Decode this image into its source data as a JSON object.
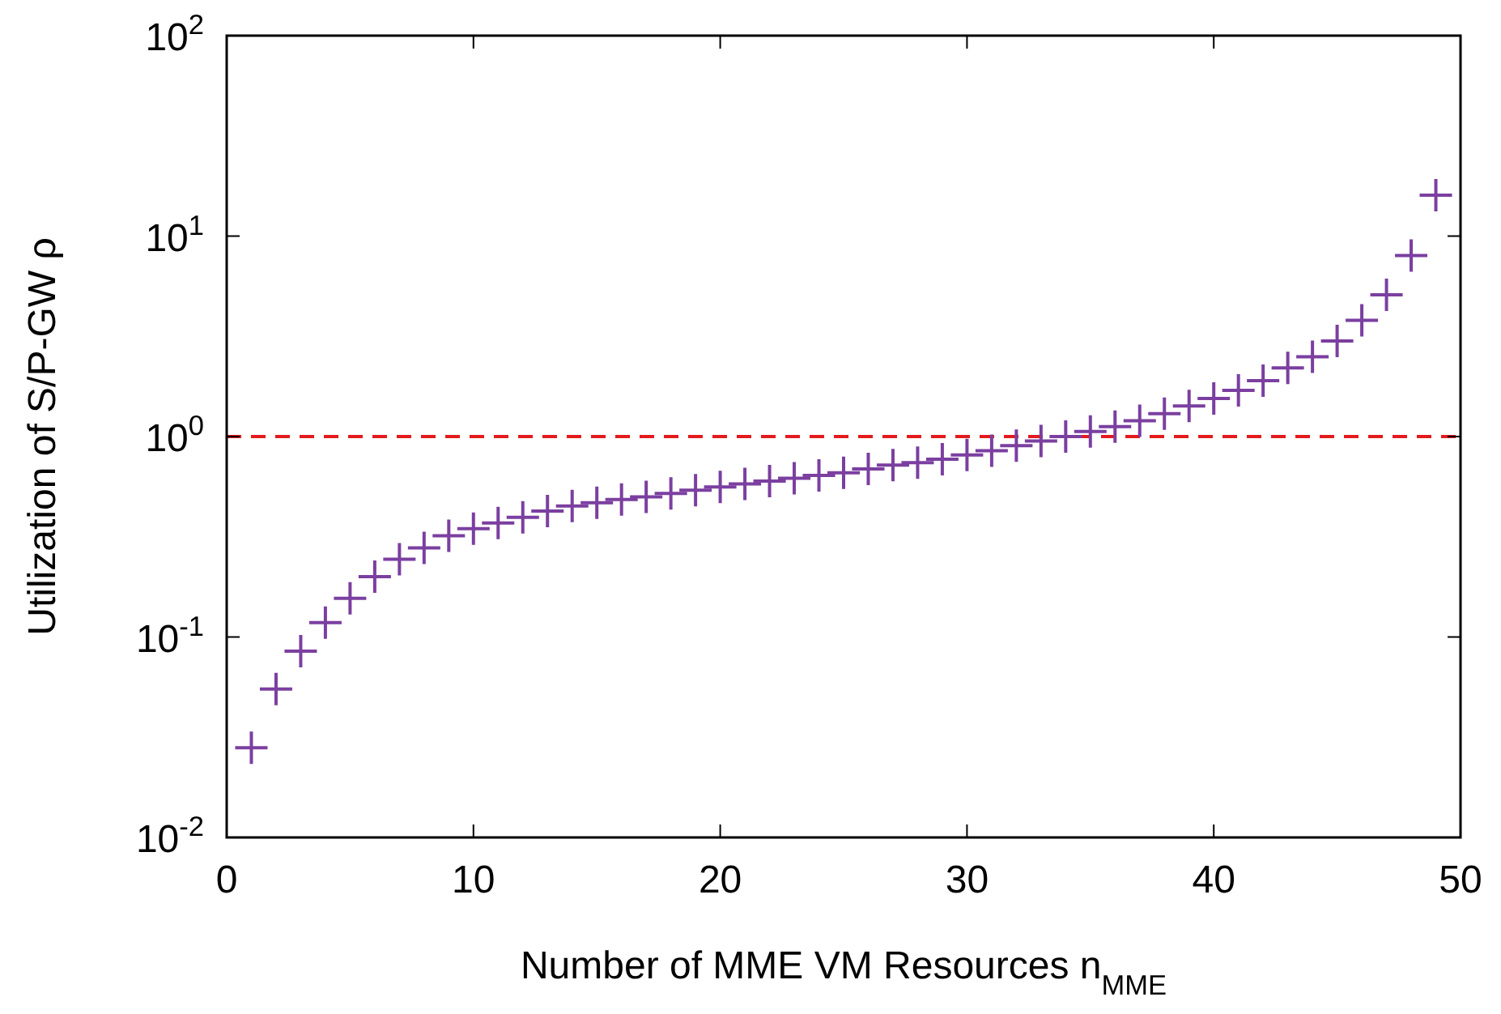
{
  "chart_data": {
    "type": "scatter",
    "xlabel": "Number of MME VM Resources n$_{MME}$",
    "ylabel": "Utilization of S/P-GW ρ",
    "log": "y",
    "marker": "cross",
    "grid": false,
    "x": [
      1,
      2,
      3,
      4,
      5,
      6,
      7,
      8,
      9,
      10,
      11,
      12,
      13,
      14,
      15,
      16,
      17,
      18,
      19,
      20,
      21,
      22,
      23,
      24,
      25,
      26,
      27,
      28,
      29,
      30,
      31,
      32,
      33,
      34,
      35,
      36,
      37,
      38,
      39,
      40,
      41,
      42,
      43,
      44,
      45,
      46,
      47,
      48,
      49
    ],
    "series": [
      {
        "color": "#7b3fa0",
        "values": [
          0.028,
          0.055,
          0.085,
          0.118,
          0.156,
          0.2,
          0.244,
          0.278,
          0.32,
          0.347,
          0.37,
          0.395,
          0.425,
          0.45,
          0.467,
          0.485,
          0.5,
          0.52,
          0.54,
          0.56,
          0.58,
          0.6,
          0.62,
          0.64,
          0.66,
          0.69,
          0.72,
          0.74,
          0.77,
          0.81,
          0.85,
          0.9,
          0.95,
          1.0,
          1.06,
          1.12,
          1.2,
          1.3,
          1.42,
          1.55,
          1.7,
          1.9,
          2.2,
          2.5,
          3.0,
          3.8,
          5.1,
          8.0,
          16
        ]
      }
    ],
    "xlim": [
      0,
      50
    ],
    "xticks": [
      0,
      10,
      20,
      30,
      40,
      50
    ],
    "ylim": [
      0.01,
      100
    ],
    "yticks": [
      {
        "value": 0.01,
        "label": "10$^{-2}$"
      },
      {
        "value": 0.1,
        "label": "10$^{-1}$"
      },
      {
        "value": 1,
        "label": "10$^{0}$"
      },
      {
        "value": 10,
        "label": "10$^{1}$"
      },
      {
        "value": 100,
        "label": "10$^{2}$"
      }
    ],
    "ref_lines": [
      {
        "axis": "y",
        "value": 1,
        "color": "#e41a1c",
        "line_style": "dashed"
      }
    ]
  }
}
